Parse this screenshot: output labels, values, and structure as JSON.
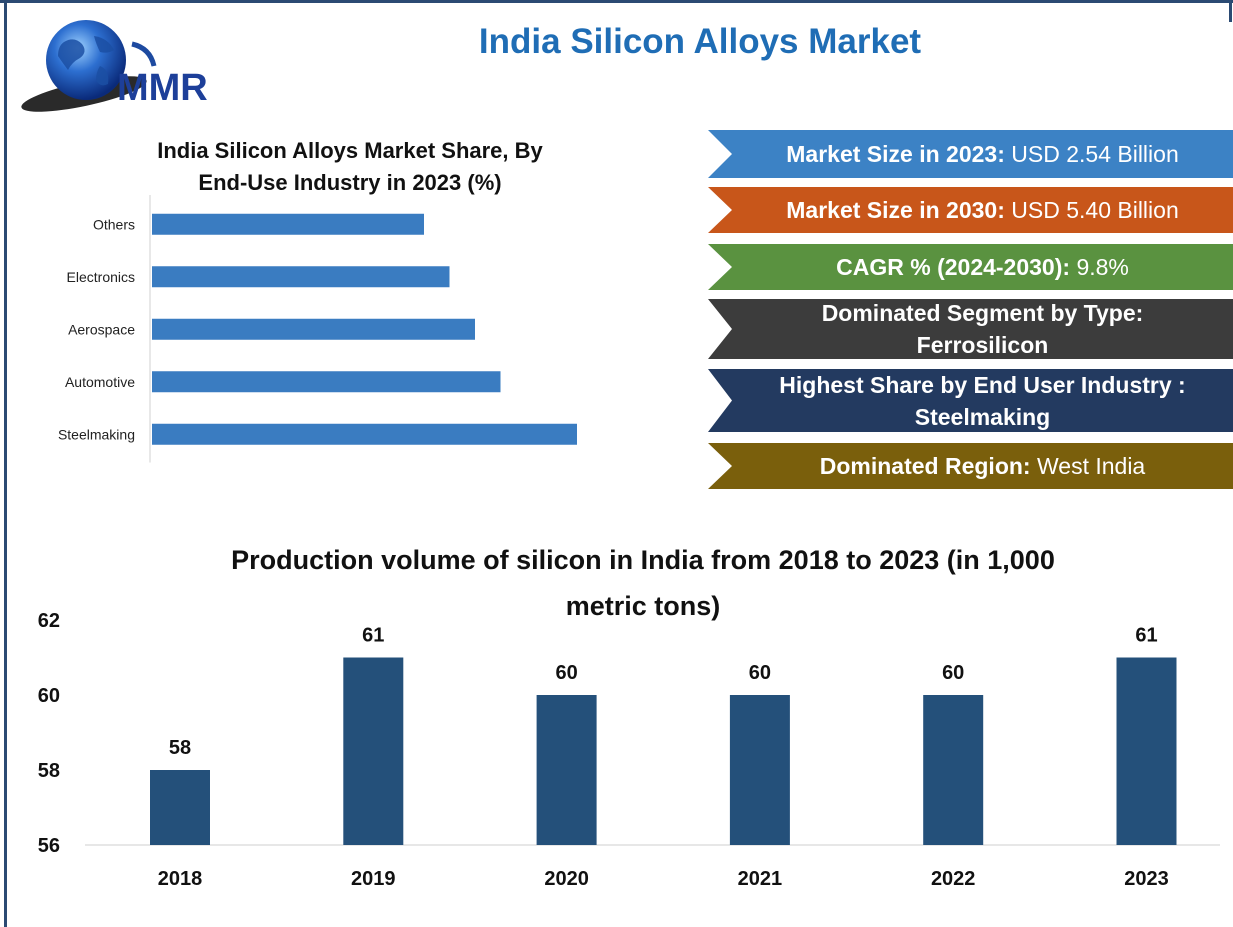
{
  "logo": {
    "text": "MMR",
    "icon": "globe-icon"
  },
  "title": "India Silicon Alloys Market",
  "info_boxes": {
    "size_2023": {
      "label": "Market Size in 2023:",
      "value": "USD 2.54 Billion",
      "color": "#3c82c5"
    },
    "size_2030": {
      "label": "Market Size in 2030:",
      "value": "USD 5.40 Billion",
      "color": "#c8561a"
    },
    "cagr": {
      "label": "CAGR % (2024-2030):",
      "value": "9.8%",
      "color": "#5a9240"
    },
    "segment": {
      "line1": "Dominated Segment by Type:",
      "line2": "Ferrosilicon",
      "color": "#3c3c3c"
    },
    "share": {
      "line1": "Highest Share by End User Industry :",
      "line2": "Steelmaking",
      "color": "#233a60"
    },
    "region": {
      "label": "Dominated Region:",
      "value": "West India",
      "color": "#7a5f0c"
    }
  },
  "chart_data": [
    {
      "type": "bar",
      "orientation": "horizontal",
      "title_line1": "India Silicon Alloys Market Share, By",
      "title_line2": "End-Use Industry in 2023 (%)",
      "categories": [
        "Others",
        "Electronics",
        "Aerospace",
        "Automotive",
        "Steelmaking"
      ],
      "values": [
        64,
        70,
        76,
        82,
        100
      ],
      "xlim": [
        0,
        100
      ],
      "grid": false,
      "bar_color": "#3a7cc1"
    },
    {
      "type": "bar",
      "title_line1": "Production volume of silicon in India from 2018 to 2023 (in 1,000",
      "title_line2": "metric tons)",
      "categories": [
        "2018",
        "2019",
        "2020",
        "2021",
        "2022",
        "2023"
      ],
      "values": [
        58,
        61,
        60,
        60,
        60,
        61
      ],
      "data_labels": [
        "58",
        "61",
        "60",
        "60",
        "60",
        "61"
      ],
      "ylim": [
        56,
        62
      ],
      "yticks": [
        "56",
        "58",
        "60",
        "62"
      ],
      "grid": false,
      "bar_color": "#24507a"
    }
  ]
}
